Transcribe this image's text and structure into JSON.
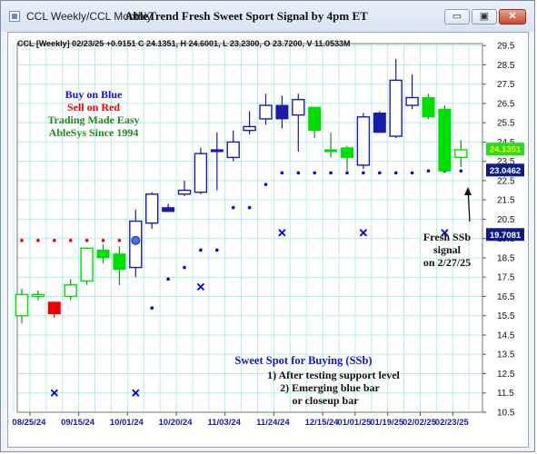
{
  "window": {
    "title": "CCL Weekly/CCL Monthly",
    "icon": "chart-window-icon",
    "controls": {
      "minimize": "▭",
      "maximize": "▣",
      "close": "✕"
    }
  },
  "colors": {
    "grid": "#b7ebe9",
    "hollow": "#1a1aa8",
    "blue": "#0000dd",
    "green": "#00dd00",
    "red": "#ee0000",
    "dot_blue": "#0000dd",
    "dot_red": "#ee0000",
    "darkgreen": "#1f8a1f"
  },
  "chart_data": {
    "type": "candlestick",
    "title": "AbleTrend Fresh Sweet Sport Signal by 4pm ET",
    "info_line": "CCL [Weekly] 02/23/25 +0.9151 C 24.1351, H 24.6001, L 23.2300, O 23.7200, V 11.0533M",
    "ylim": [
      10.5,
      29.6
    ],
    "y_ticks": [
      "29.5",
      "28.5",
      "27.5",
      "26.5",
      "25.5",
      "24.5",
      "23.5",
      "22.5",
      "21.5",
      "20.5",
      "19.5",
      "18.5",
      "17.5",
      "16.5",
      "15.5",
      "14.5",
      "13.5",
      "12.5",
      "11.5",
      "10.5"
    ],
    "x_labels": [
      "08/25/24",
      "09/15/24",
      "10/01/24",
      "10/20/24",
      "11/03/24",
      "11/24/24",
      "12/15/24",
      "01/01/25",
      "01/19/25",
      "02/02/25",
      "02/23/25"
    ],
    "price_tags": [
      {
        "text": "24.1351",
        "value": 24.1351,
        "bg": "#22dd22",
        "fg": "#ffff00"
      },
      {
        "text": "23.0462",
        "value": 23.0462,
        "bg": "#0c1e86",
        "fg": "#ffffff"
      },
      {
        "text": "19.7081",
        "value": 19.7081,
        "bg": "#0c1e86",
        "fg": "#ffffff"
      }
    ],
    "candles": [
      {
        "o": 15.5,
        "h": 16.9,
        "l": 15.1,
        "c": 16.6,
        "color": "green_hollow"
      },
      {
        "o": 16.5,
        "h": 16.8,
        "l": 16.3,
        "c": 16.6,
        "color": "green_hollow"
      },
      {
        "o": 15.6,
        "h": 16.1,
        "l": 15.4,
        "c": 16.2,
        "color": "red"
      },
      {
        "o": 16.5,
        "h": 17.4,
        "l": 16.3,
        "c": 17.1,
        "color": "green_hollow"
      },
      {
        "o": 17.3,
        "h": 19.0,
        "l": 17.1,
        "c": 19.0,
        "color": "green_hollow"
      },
      {
        "o": 18.9,
        "h": 19.2,
        "l": 18.2,
        "c": 18.5,
        "color": "green"
      },
      {
        "o": 18.7,
        "h": 19.1,
        "l": 17.1,
        "c": 17.9,
        "color": "green"
      },
      {
        "o": 18.0,
        "h": 21.0,
        "l": 17.5,
        "c": 20.4,
        "color": "blue_hollow"
      },
      {
        "o": 20.3,
        "h": 21.9,
        "l": 20.0,
        "c": 21.8,
        "color": "blue_hollow"
      },
      {
        "o": 21.1,
        "h": 21.3,
        "l": 20.9,
        "c": 20.9,
        "color": "blue"
      },
      {
        "o": 21.8,
        "h": 22.5,
        "l": 21.7,
        "c": 22.0,
        "color": "blue_hollow"
      },
      {
        "o": 21.9,
        "h": 24.2,
        "l": 21.8,
        "c": 23.9,
        "color": "blue_hollow"
      },
      {
        "o": 24.1,
        "h": 25.0,
        "l": 22.0,
        "c": 24.0,
        "color": "blue"
      },
      {
        "o": 23.7,
        "h": 25.1,
        "l": 23.5,
        "c": 24.5,
        "color": "blue_hollow"
      },
      {
        "o": 25.1,
        "h": 26.1,
        "l": 24.9,
        "c": 25.3,
        "color": "blue_hollow"
      },
      {
        "o": 25.7,
        "h": 27.0,
        "l": 25.4,
        "c": 26.4,
        "color": "blue_hollow"
      },
      {
        "o": 26.4,
        "h": 26.9,
        "l": 25.2,
        "c": 25.7,
        "color": "blue"
      },
      {
        "o": 25.9,
        "h": 27.0,
        "l": 24.0,
        "c": 26.7,
        "color": "blue_hollow"
      },
      {
        "o": 26.3,
        "h": 26.3,
        "l": 24.7,
        "c": 25.1,
        "color": "green"
      },
      {
        "o": 24.1,
        "h": 25.0,
        "l": 23.7,
        "c": 24.0,
        "color": "green"
      },
      {
        "o": 24.2,
        "h": 24.3,
        "l": 22.9,
        "c": 23.7,
        "color": "green"
      },
      {
        "o": 23.3,
        "h": 26.0,
        "l": 23.1,
        "c": 25.8,
        "color": "blue_hollow"
      },
      {
        "o": 26.0,
        "h": 26.1,
        "l": 25.0,
        "c": 25.0,
        "color": "blue"
      },
      {
        "o": 24.8,
        "h": 28.8,
        "l": 24.7,
        "c": 27.7,
        "color": "blue_hollow"
      },
      {
        "o": 26.4,
        "h": 28.0,
        "l": 26.2,
        "c": 26.8,
        "color": "blue_hollow"
      },
      {
        "o": 26.8,
        "h": 27.0,
        "l": 25.7,
        "c": 25.8,
        "color": "green"
      },
      {
        "o": 26.2,
        "h": 26.4,
        "l": 22.9,
        "c": 23.0,
        "color": "green"
      },
      {
        "o": 23.7,
        "h": 24.6,
        "l": 23.2,
        "c": 24.1,
        "color": "green_hollow"
      }
    ],
    "red_dots": [
      {
        "from": 0,
        "to": 7,
        "value": 19.4
      }
    ],
    "blue_dots": [
      {
        "i": 8,
        "value": 15.9
      },
      {
        "i": 9,
        "value": 17.4
      },
      {
        "i": 10,
        "value": 18.0
      },
      {
        "i": 11,
        "value": 18.9
      },
      {
        "i": 12,
        "value": 18.9
      },
      {
        "i": 13,
        "value": 21.1
      },
      {
        "i": 14,
        "value": 21.1
      },
      {
        "i": 15,
        "value": 22.3
      },
      {
        "i": 16,
        "value": 22.9
      },
      {
        "i": 17,
        "value": 22.9
      },
      {
        "i": 18,
        "value": 22.9
      },
      {
        "i": 19,
        "value": 22.9
      },
      {
        "i": 20,
        "value": 22.9
      },
      {
        "i": 21,
        "value": 22.9
      },
      {
        "i": 22,
        "value": 22.9
      },
      {
        "i": 23,
        "value": 22.9
      },
      {
        "i": 24,
        "value": 22.9
      },
      {
        "i": 25,
        "value": 23.0
      },
      {
        "i": 26,
        "value": 23.0
      },
      {
        "i": 27,
        "value": 23.0
      }
    ],
    "crosses": [
      {
        "i": 2,
        "value": 11.5
      },
      {
        "i": 7,
        "value": 11.5
      },
      {
        "i": 11,
        "value": 17.0
      },
      {
        "i": 16,
        "value": 19.8
      },
      {
        "i": 21,
        "value": 19.8
      },
      {
        "i": 26,
        "value": 19.8
      }
    ],
    "blue_marker": {
      "i": 7,
      "value": 19.4
    },
    "legend": [
      {
        "text": "Buy on Blue",
        "color": "#1515c0"
      },
      {
        "text": "Sell on Red",
        "color": "#ee0000"
      },
      {
        "text": "Trading Made Easy",
        "color": "#1f8a1f"
      },
      {
        "text": "AbleSys Since 1994",
        "color": "#1f8a1f"
      }
    ],
    "annotations": {
      "signal": [
        "Fresh SSb",
        "signal",
        "on 2/27/25"
      ],
      "ssb_title": "Sweet Spot for Buying (SSb)",
      "ssb_lines": [
        "1) After testing support level",
        "2) Emerging blue bar",
        "or closeup bar"
      ]
    }
  }
}
